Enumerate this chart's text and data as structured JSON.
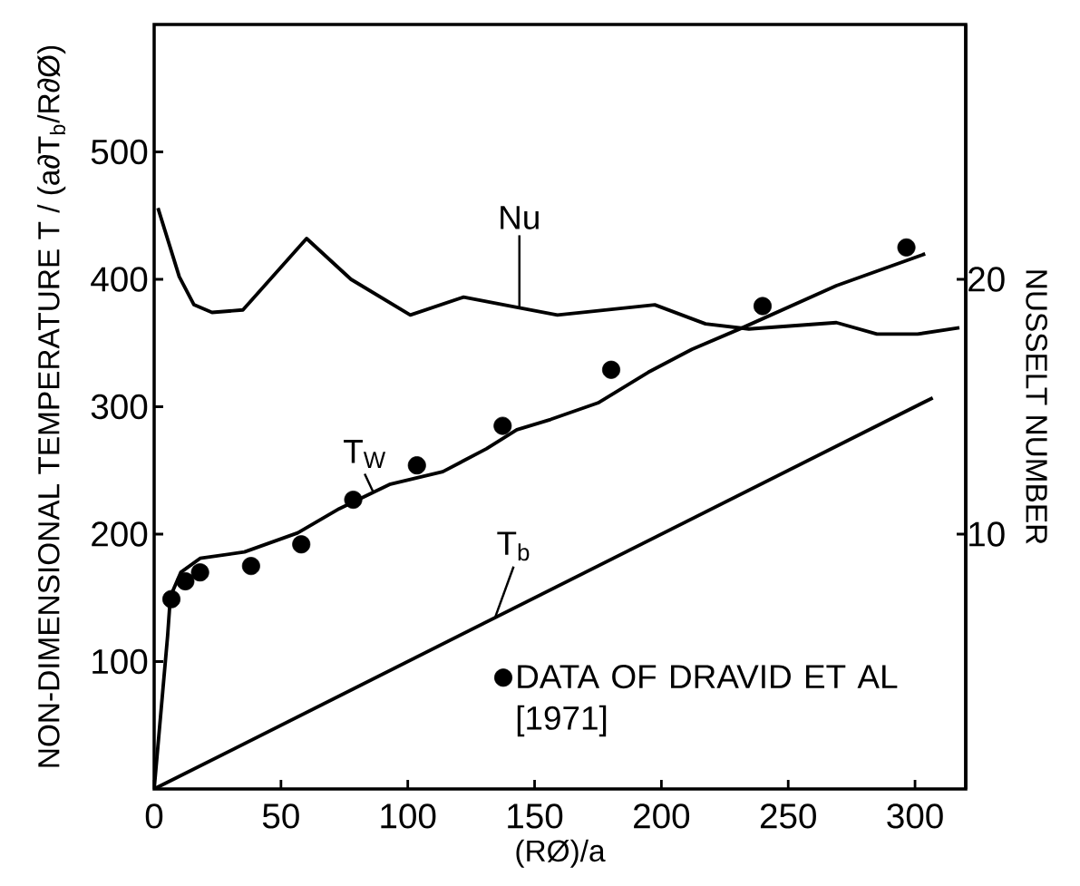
{
  "chart_data": {
    "type": "line",
    "xlabel": "(RØ)/a",
    "ylabel": "NON-DIMENSIONAL TEMPERATURE   T / (a∂T$_{b}$/R∂Ø)",
    "y2label": "NUSSELT NUMBER",
    "xlim": [
      0,
      320
    ],
    "ylim": [
      0,
      600
    ],
    "y2lim": [
      0,
      30
    ],
    "xticks": [
      0,
      50,
      100,
      150,
      200,
      250,
      300
    ],
    "yticks": [
      100,
      200,
      300,
      400,
      500
    ],
    "y2ticks": [
      10,
      20
    ],
    "legend": "bottom right",
    "series": [
      {
        "name": "Nu",
        "axis": "y2",
        "color": "#000000",
        "x": [
          1.5,
          9.9,
          15.7,
          22.8,
          35,
          60.1,
          77.6,
          101,
          122,
          143,
          159,
          197.4,
          217.4,
          234.5,
          269,
          285,
          301,
          317.5
        ],
        "values": [
          22.8,
          20.1,
          19.0,
          18.7,
          18.8,
          21.6,
          20.0,
          18.6,
          19.3,
          18.9,
          18.6,
          19.0,
          18.25,
          18.05,
          18.3,
          17.85,
          17.85,
          18.1
        ]
      },
      {
        "name": "T$_{W}$",
        "color": "#000000",
        "x": [
          0,
          5.3,
          6.4,
          10.5,
          18.1,
          35.6,
          56.6,
          73,
          92.8,
          113.8,
          131,
          143,
          156.3,
          175,
          194.8,
          212,
          232,
          269,
          304
        ],
        "values": [
          0,
          120,
          151,
          170,
          181,
          186,
          201,
          220,
          239,
          249,
          267,
          282,
          290,
          303,
          327,
          345,
          362,
          395,
          420
        ]
      },
      {
        "name": "T$_{b}$",
        "color": "#000000",
        "x": [
          0,
          307
        ],
        "values": [
          0,
          307
        ]
      },
      {
        "name": "DATA OF DRAVID ET AL [1971]",
        "type": "scatter",
        "marker": "circle",
        "color": "#000000",
        "x": [
          6.8,
          12.3,
          18.1,
          38.2,
          58,
          78.5,
          103.6,
          137.4,
          180.2,
          239.9,
          296.6
        ],
        "values": [
          149,
          163,
          170,
          175,
          192,
          227,
          254,
          285,
          329,
          379,
          425
        ]
      }
    ]
  }
}
